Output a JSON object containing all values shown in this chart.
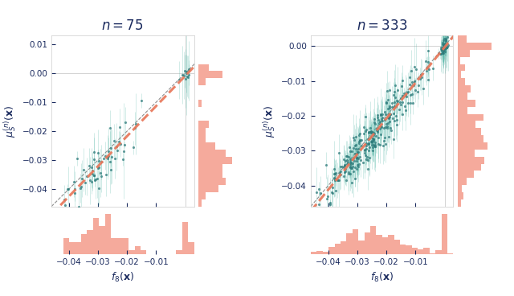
{
  "title_left": "$n = 75$",
  "title_right": "$n = 333$",
  "xlabel": "$f_8(\\mathbf{x})$",
  "ylabel": "$\\mu_S^{(n)}(\\mathbf{x})$",
  "xlim1": [
    -0.046,
    0.003
  ],
  "ylim1": [
    -0.046,
    0.013
  ],
  "xlim2": [
    -0.046,
    0.003
  ],
  "ylim2": [
    -0.046,
    0.003
  ],
  "xticks1": [
    -0.04,
    -0.03,
    -0.02,
    -0.01
  ],
  "yticks1": [
    -0.04,
    -0.03,
    -0.02,
    -0.01,
    0.0,
    0.01
  ],
  "xticks2": [
    -0.04,
    -0.03,
    -0.02,
    -0.01
  ],
  "yticks2": [
    -0.04,
    -0.03,
    -0.02,
    -0.01,
    0.0
  ],
  "scatter_color": "#2d7b7b",
  "errorbar_color": "#4db3a4",
  "hist_color": "#f4a191",
  "fit_color": "#e8775a",
  "diagonal_color": "#444444",
  "axis_color": "#1a2a5e",
  "title_fontsize": 12,
  "label_fontsize": 9,
  "tick_fontsize": 7.5,
  "seed": 42,
  "n1": 75,
  "n2": 333
}
